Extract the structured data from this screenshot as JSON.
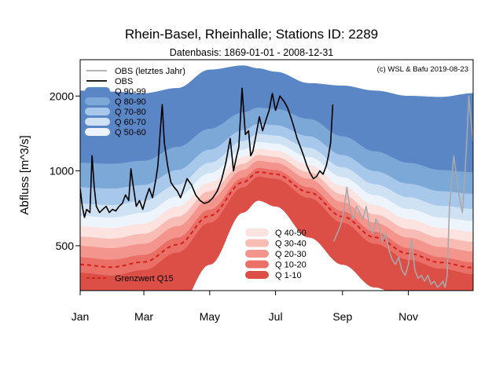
{
  "chart_data": {
    "type": "area",
    "title": "Rhein-Basel, Rheinhalle; Stations ID: 2289",
    "subtitle": "Datenbasis: 1869-01-01 - 2008-12-31",
    "credit": "(c) WSL & Bafu 2019-08-23",
    "ylabel": "Abfluss [m^3/s]",
    "y_scale": "log",
    "ylim": [
      330,
      2800
    ],
    "yticks": [
      500,
      1000,
      2000
    ],
    "xlim": [
      1,
      365
    ],
    "xticks": [
      {
        "day": 1,
        "label": "Jan"
      },
      {
        "day": 60,
        "label": "Mar"
      },
      {
        "day": 121,
        "label": "May"
      },
      {
        "day": 182,
        "label": "Jul"
      },
      {
        "day": 244,
        "label": "Sep"
      },
      {
        "day": 305,
        "label": "Nov"
      }
    ],
    "days": [
      1,
      30,
      60,
      91,
      121,
      152,
      166,
      182,
      213,
      244,
      274,
      305,
      335,
      365
    ],
    "percentiles": [
      1,
      10,
      20,
      30,
      40,
      50,
      60,
      70,
      80,
      90,
      99
    ],
    "quantiles": [
      [
        230,
        220,
        230,
        280,
        420,
        680,
        760,
        720,
        540,
        420,
        340,
        300,
        270,
        250
      ],
      [
        390,
        380,
        400,
        470,
        620,
        860,
        950,
        930,
        780,
        620,
        510,
        440,
        405,
        385
      ],
      [
        450,
        440,
        460,
        540,
        700,
        940,
        1030,
        1010,
        860,
        690,
        570,
        490,
        450,
        430
      ],
      [
        500,
        490,
        510,
        600,
        770,
        1010,
        1100,
        1080,
        930,
        750,
        620,
        540,
        495,
        475
      ],
      [
        545,
        535,
        560,
        655,
        830,
        1070,
        1160,
        1140,
        990,
        805,
        670,
        585,
        540,
        520
      ],
      [
        600,
        590,
        615,
        720,
        900,
        1140,
        1230,
        1210,
        1060,
        870,
        730,
        640,
        590,
        570
      ],
      [
        660,
        650,
        680,
        790,
        980,
        1220,
        1310,
        1290,
        1140,
        945,
        800,
        705,
        650,
        630
      ],
      [
        740,
        730,
        760,
        880,
        1080,
        1320,
        1410,
        1390,
        1240,
        1035,
        885,
        785,
        725,
        705
      ],
      [
        860,
        850,
        880,
        1010,
        1220,
        1460,
        1550,
        1530,
        1380,
        1160,
        1000,
        890,
        830,
        810
      ],
      [
        1080,
        1070,
        1100,
        1250,
        1480,
        1720,
        1800,
        1780,
        1620,
        1380,
        1200,
        1080,
        1010,
        990
      ],
      [
        2100,
        2080,
        2050,
        2150,
        2550,
        2650,
        2580,
        2500,
        2250,
        2200,
        2100,
        2000,
        1980,
        2050
      ]
    ],
    "bands": [
      {
        "name": "Q 1-10",
        "from": 0,
        "to": 1,
        "color": "#dc4f47"
      },
      {
        "name": "Q 10-20",
        "from": 1,
        "to": 2,
        "color": "#ea6f67"
      },
      {
        "name": "Q 20-30",
        "from": 2,
        "to": 3,
        "color": "#f4958d"
      },
      {
        "name": "Q 30-40",
        "from": 3,
        "to": 4,
        "color": "#f9bcb5"
      },
      {
        "name": "Q 40-50",
        "from": 4,
        "to": 5,
        "color": "#fde3df"
      },
      {
        "name": "Q 50-60",
        "from": 5,
        "to": 6,
        "color": "#eef4fb"
      },
      {
        "name": "Q 60-70",
        "from": 6,
        "to": 7,
        "color": "#cfe2f4"
      },
      {
        "name": "Q 70-80",
        "from": 7,
        "to": 8,
        "color": "#a7c8ea"
      },
      {
        "name": "Q 80-90",
        "from": 8,
        "to": 9,
        "color": "#7ca8d8"
      },
      {
        "name": "Q 90-99",
        "from": 9,
        "to": 10,
        "color": "#5a86c5"
      }
    ],
    "grenzwert": {
      "name": "Grenzwert Q15",
      "color": "#d42020",
      "days": [
        1,
        30,
        60,
        91,
        121,
        152,
        166,
        182,
        213,
        244,
        274,
        305,
        335,
        365
      ],
      "values": [
        420,
        410,
        430,
        505,
        660,
        900,
        990,
        970,
        820,
        655,
        540,
        465,
        428,
        408
      ]
    },
    "series": [
      {
        "name": "OBS",
        "color": "#000000",
        "x": [
          1,
          3,
          5,
          7,
          10,
          12,
          14,
          16,
          19,
          22,
          25,
          28,
          31,
          34,
          37,
          40,
          43,
          46,
          48,
          50,
          53,
          56,
          59,
          62,
          65,
          68,
          71,
          73,
          75,
          77,
          79,
          82,
          85,
          88,
          91,
          94,
          97,
          100,
          104,
          108,
          112,
          116,
          120,
          124,
          128,
          132,
          136,
          140,
          143,
          146,
          148,
          151,
          154,
          157,
          159,
          161,
          164,
          167,
          170,
          173,
          176,
          179,
          182,
          186,
          190,
          193,
          196,
          199,
          202,
          205,
          208,
          211,
          214,
          217,
          220,
          223,
          226,
          229,
          231,
          233,
          235
        ],
        "y": [
          850,
          720,
          650,
          700,
          680,
          1150,
          860,
          720,
          680,
          700,
          720,
          680,
          700,
          690,
          720,
          740,
          800,
          760,
          1020,
          880,
          720,
          760,
          700,
          780,
          850,
          780,
          920,
          1050,
          1400,
          1850,
          1300,
          1050,
          900,
          860,
          830,
          780,
          850,
          930,
          880,
          800,
          760,
          740,
          750,
          780,
          830,
          920,
          1080,
          1350,
          1000,
          1150,
          1250,
          2150,
          1400,
          1450,
          1150,
          1200,
          1400,
          1650,
          1450,
          1600,
          1750,
          2050,
          1750,
          2000,
          1900,
          1800,
          1650,
          1500,
          1350,
          1250,
          1150,
          1050,
          980,
          930,
          950,
          1000,
          970,
          1050,
          1150,
          1300,
          1850
        ]
      },
      {
        "name": "OBS (letztes Jahr)",
        "color": "#a8a8a8",
        "x": [
          236,
          239,
          242,
          245,
          248,
          251,
          254,
          257,
          260,
          263,
          266,
          269,
          272,
          275,
          278,
          281,
          284,
          287,
          290,
          293,
          296,
          299,
          302,
          305,
          308,
          311,
          314,
          317,
          320,
          323,
          326,
          329,
          332,
          335,
          337,
          339,
          341,
          343,
          345,
          347,
          349,
          351,
          353,
          355,
          357,
          359,
          361,
          363,
          365
        ],
        "y": [
          520,
          560,
          600,
          680,
          860,
          700,
          640,
          720,
          680,
          640,
          720,
          600,
          560,
          640,
          600,
          520,
          560,
          480,
          440,
          420,
          450,
          400,
          380,
          420,
          530,
          400,
          370,
          380,
          360,
          380,
          350,
          360,
          340,
          350,
          360,
          340,
          380,
          700,
          900,
          1150,
          1000,
          850,
          750,
          680,
          900,
          1300,
          2000,
          1600,
          1300
        ]
      }
    ],
    "legend_top": [
      "OBS (letztes Jahr)",
      "OBS",
      "Q 90-99",
      "Q 80-90",
      "Q 70-80",
      "Q 60-70",
      "Q 50-60"
    ],
    "legend_bottom": [
      "Q 40-50",
      "Q 30-40",
      "Q 20-30",
      "Q 10-20",
      "Q 1-10"
    ],
    "legend_grenzwert": "Grenzwert Q15"
  }
}
